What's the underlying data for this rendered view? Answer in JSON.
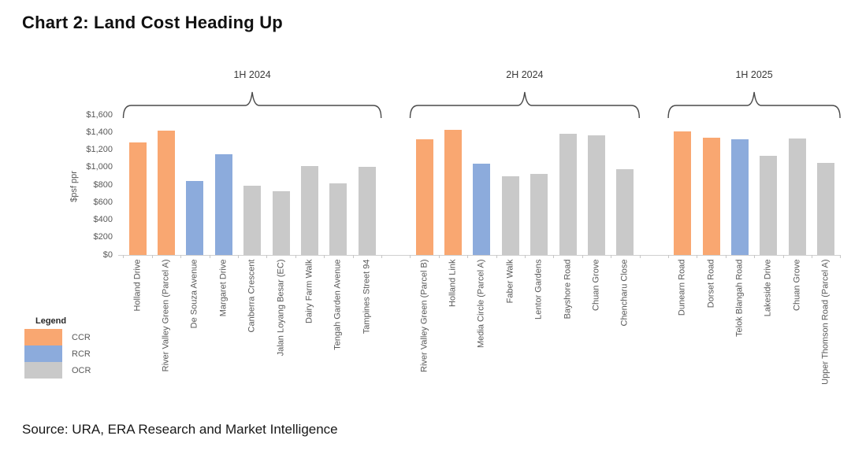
{
  "page": {
    "title": "Chart 2: Land Cost Heading Up",
    "source": "Source: URA, ERA Research and Market Intelligence"
  },
  "legend": {
    "title": "Legend",
    "items": [
      {
        "label": "CCR",
        "color": "#F9A771"
      },
      {
        "label": "RCR",
        "color": "#8CABDC"
      },
      {
        "label": "OCR",
        "color": "#C9C9C9"
      }
    ]
  },
  "chart_data": {
    "type": "bar",
    "title": "Chart 2: Land Cost Heading Up",
    "ylabel": "$psf ppr",
    "xlabel": "",
    "ylim": [
      0,
      1600
    ],
    "grid": false,
    "legend_position": "bottom-left",
    "yticks": [
      {
        "value": 1600,
        "label": "$1,600"
      },
      {
        "value": 1400,
        "label": "$1,400"
      },
      {
        "value": 1200,
        "label": "$1,200"
      },
      {
        "value": 1000,
        "label": "$1,000"
      },
      {
        "value": 800,
        "label": "$800"
      },
      {
        "value": 600,
        "label": "$600"
      },
      {
        "value": 400,
        "label": "$400"
      },
      {
        "value": 200,
        "label": "$200"
      },
      {
        "value": 0,
        "label": "$0"
      }
    ],
    "region_colors": {
      "CCR": "#F9A771",
      "RCR": "#8CABDC",
      "OCR": "#C9C9C9"
    },
    "groups": [
      {
        "label": "1H 2024",
        "bars": [
          {
            "category": "Holland Drive",
            "region": "CCR",
            "value": 1285
          },
          {
            "category": "River Valley Green (Parcel A)",
            "region": "CCR",
            "value": 1420
          },
          {
            "category": "De Souza Avenue",
            "region": "RCR",
            "value": 845
          },
          {
            "category": "Margaret Drive",
            "region": "RCR",
            "value": 1155
          },
          {
            "category": "Canberra Crescent",
            "region": "OCR",
            "value": 795
          },
          {
            "category": "Jalan Loyang Besar (EC)",
            "region": "OCR",
            "value": 729
          },
          {
            "category": "Dairy Farm Walk",
            "region": "OCR",
            "value": 1020
          },
          {
            "category": "Tengah Garden Avenue",
            "region": "OCR",
            "value": 820
          },
          {
            "category": "Tampines Street 94",
            "region": "OCR",
            "value": 1005
          }
        ]
      },
      {
        "label": "2H 2024",
        "bars": [
          {
            "category": "River Valley Green (Parcel B)",
            "region": "CCR",
            "value": 1320
          },
          {
            "category": "Holland Link",
            "region": "CCR",
            "value": 1425
          },
          {
            "category": "Media Circle (Parcel A)",
            "region": "RCR",
            "value": 1040
          },
          {
            "category": "Faber Walk",
            "region": "OCR",
            "value": 900
          },
          {
            "category": "Lentor Gardens",
            "region": "OCR",
            "value": 925
          },
          {
            "category": "Bayshore Road",
            "region": "OCR",
            "value": 1388
          },
          {
            "category": "Chuan Grove",
            "region": "OCR",
            "value": 1370
          },
          {
            "category": "Chencharu Close",
            "region": "OCR",
            "value": 984
          }
        ]
      },
      {
        "label": "1H 2025",
        "bars": [
          {
            "category": "Dunearn Road",
            "region": "CCR",
            "value": 1410
          },
          {
            "category": "Dorset Road",
            "region": "CCR",
            "value": 1340
          },
          {
            "category": "Telok Blangah Road",
            "region": "RCR",
            "value": 1325
          },
          {
            "category": "Lakeside Drive",
            "region": "OCR",
            "value": 1130
          },
          {
            "category": "Chuan Grove",
            "region": "OCR",
            "value": 1330
          },
          {
            "category": "Upper Thomson Road (Parcel A)",
            "region": "OCR",
            "value": 1055
          }
        ]
      }
    ]
  }
}
